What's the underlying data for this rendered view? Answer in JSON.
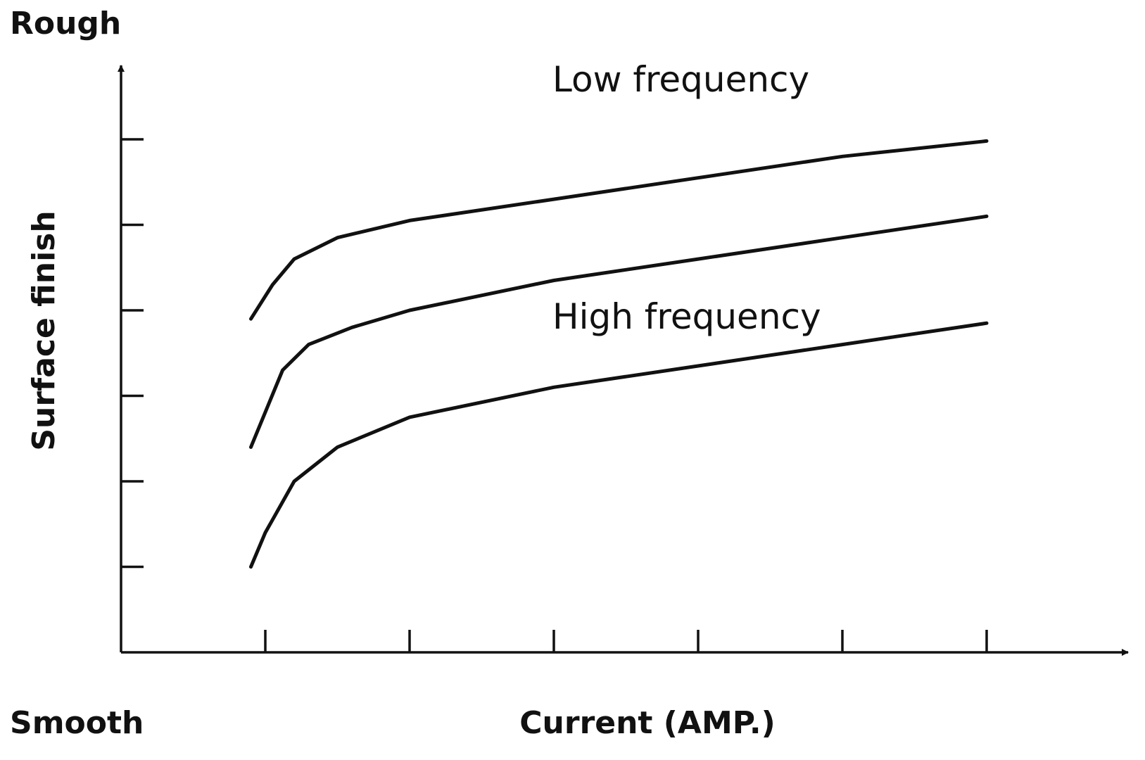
{
  "chart_data": {
    "type": "line",
    "xlabel": "Current (AMP.)",
    "ylabel": "Surface finish",
    "y_top_label": "Rough",
    "y_bottom_label": "Smooth",
    "xlim": [
      0,
      7
    ],
    "ylim": [
      0,
      6.8
    ],
    "x_ticks": [
      1,
      2,
      3,
      4,
      5,
      6
    ],
    "y_ticks": [
      1,
      2,
      3,
      4,
      5,
      6
    ],
    "x_tick_labels_shown": false,
    "y_tick_labels_shown": false,
    "grid": false,
    "series": [
      {
        "name": "Low frequency",
        "points": [
          [
            0.9,
            3.9
          ],
          [
            1.05,
            4.3
          ],
          [
            1.2,
            4.6
          ],
          [
            1.5,
            4.85
          ],
          [
            2.0,
            5.05
          ],
          [
            3.0,
            5.3
          ],
          [
            4.0,
            5.55
          ],
          [
            5.0,
            5.8
          ],
          [
            6.0,
            5.98
          ]
        ]
      },
      {
        "name": "",
        "points": [
          [
            0.9,
            2.4
          ],
          [
            1.12,
            3.3
          ],
          [
            1.3,
            3.6
          ],
          [
            1.6,
            3.8
          ],
          [
            2.0,
            4.0
          ],
          [
            3.0,
            4.35
          ],
          [
            4.0,
            4.6
          ],
          [
            5.0,
            4.85
          ],
          [
            6.0,
            5.1
          ]
        ]
      },
      {
        "name": "High frequency",
        "points": [
          [
            0.9,
            1.0
          ],
          [
            1.0,
            1.4
          ],
          [
            1.2,
            2.0
          ],
          [
            1.5,
            2.4
          ],
          [
            2.0,
            2.75
          ],
          [
            3.0,
            3.1
          ],
          [
            4.0,
            3.35
          ],
          [
            5.0,
            3.6
          ],
          [
            6.0,
            3.85
          ]
        ]
      }
    ]
  }
}
